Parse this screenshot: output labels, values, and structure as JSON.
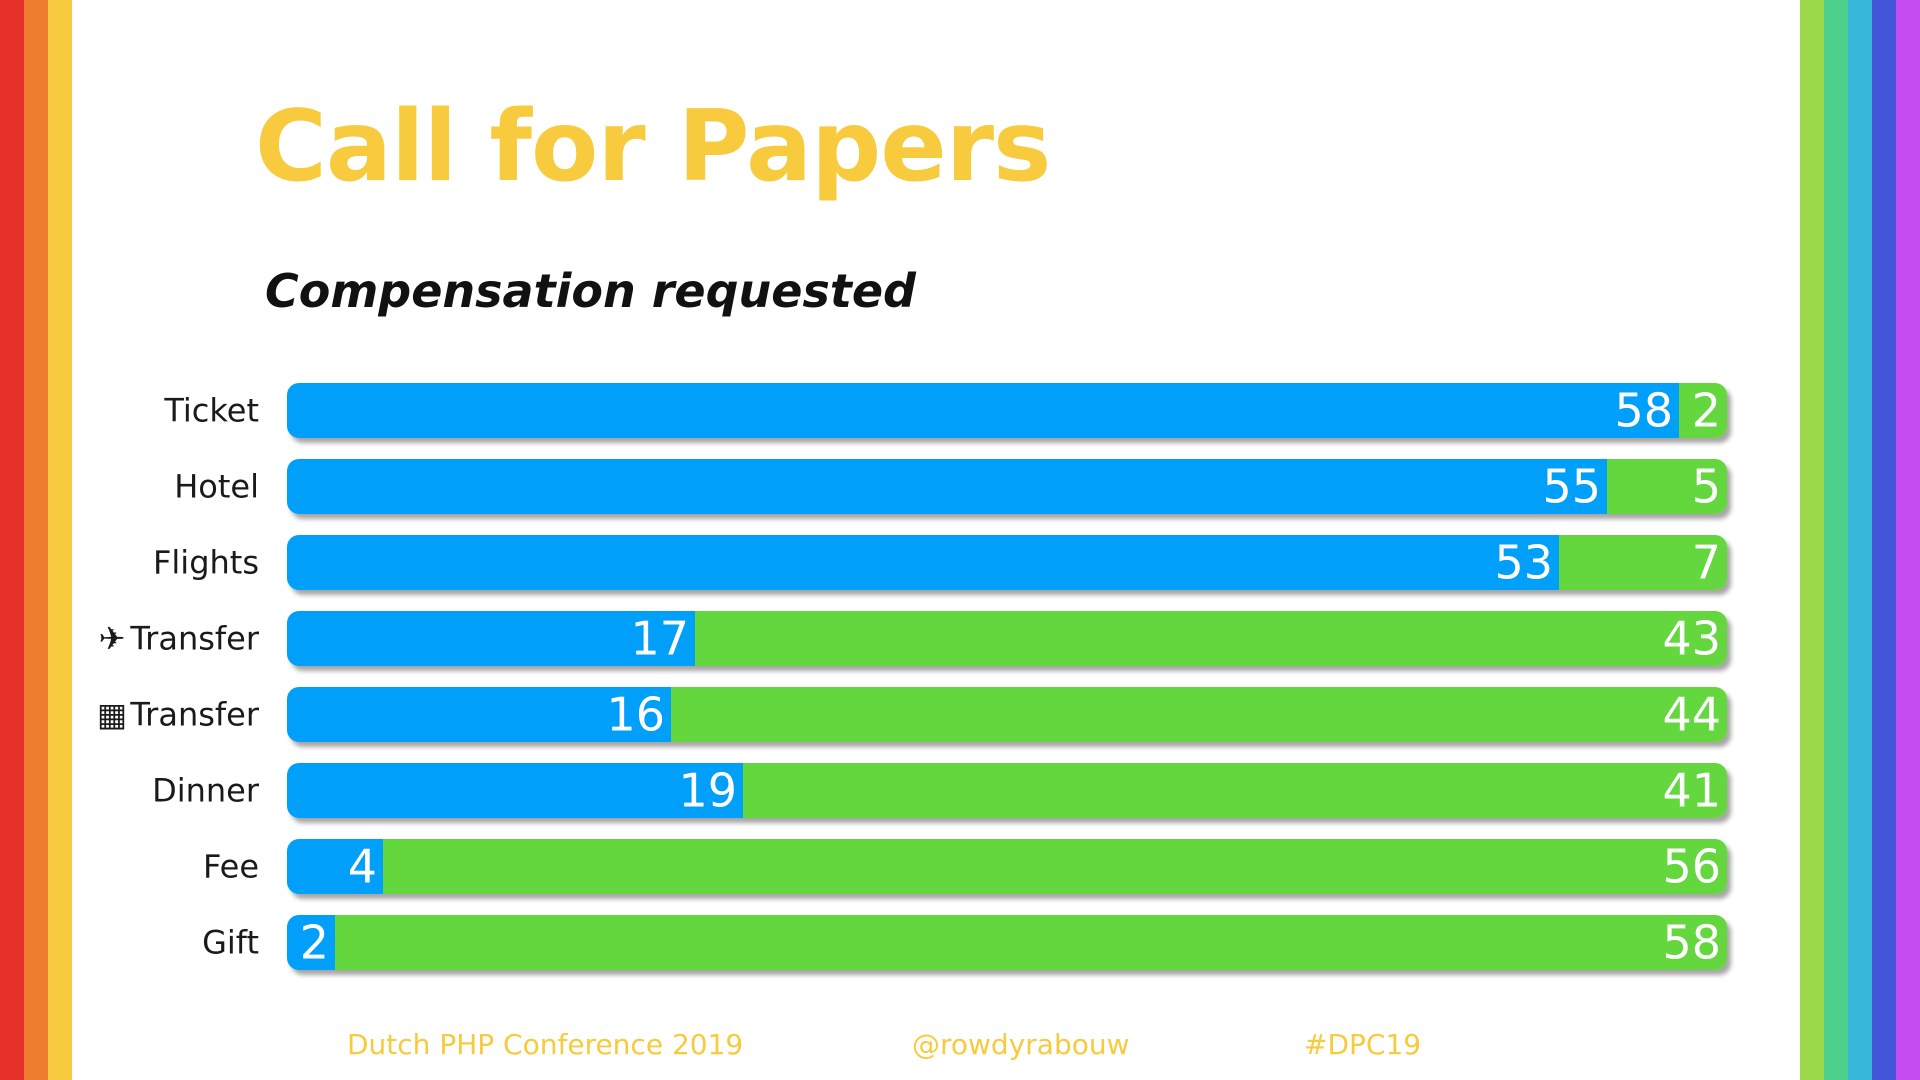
{
  "slide": {
    "title": "Call for Papers",
    "subtitle": "Compensation requested",
    "title_color": "#f7cb3d"
  },
  "chart_data": {
    "type": "bar",
    "orientation": "horizontal",
    "stacked": true,
    "title": "Compensation requested",
    "categories": [
      "Ticket",
      "Hotel",
      "Flights",
      "Transfer",
      "Transfer",
      "Dinner",
      "Fee",
      "Gift"
    ],
    "category_icons": [
      "",
      "",
      "",
      "airplane-icon",
      "building-icon",
      "",
      "",
      ""
    ],
    "category_glyphs": [
      "",
      "",
      "",
      "✈",
      "▦",
      "",
      "",
      ""
    ],
    "series": [
      {
        "values": [
          58,
          55,
          53,
          17,
          16,
          19,
          4,
          2
        ],
        "color": "#06a0fa"
      },
      {
        "values": [
          2,
          5,
          7,
          43,
          44,
          41,
          56,
          58
        ],
        "color": "#64d73c"
      }
    ],
    "xlim": [
      0,
      60
    ],
    "grid": false,
    "legend": "none"
  },
  "footer": {
    "conference": "Dutch PHP Conference 2019",
    "handle": "@rowdyrabouw",
    "hashtag": "#DPC19",
    "color": "#f7cb3d"
  },
  "stripes": {
    "left": [
      "#e8302b",
      "#ee7d2e",
      "#f7cb3d"
    ],
    "right": [
      "#9bd84a",
      "#4cd08b",
      "#36b7d9",
      "#4356d9",
      "#c54cf0"
    ]
  }
}
